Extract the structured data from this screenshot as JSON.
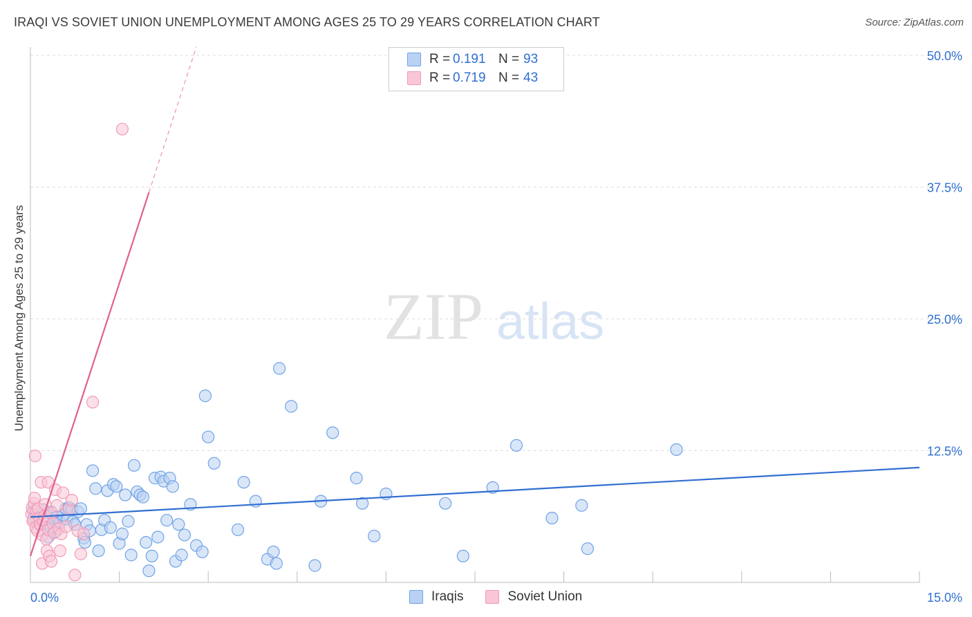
{
  "title": "IRAQI VS SOVIET UNION UNEMPLOYMENT AMONG AGES 25 TO 29 YEARS CORRELATION CHART",
  "source": "Source: ZipAtlas.com",
  "watermark": {
    "zip": "ZIP",
    "atlas": "atlas"
  },
  "legend_top": {
    "rows": [
      {
        "r_label": "R =",
        "r_value": "0.191",
        "n_label": "N =",
        "n_value": "93",
        "color": "#6fa3e6",
        "fill": "#b9d1f3"
      },
      {
        "r_label": "R =",
        "r_value": "0.719",
        "n_label": "N =",
        "n_value": "43",
        "color": "#f09bb8",
        "fill": "#f9c6d6"
      }
    ]
  },
  "legend_bottom": [
    {
      "label": "Iraqis",
      "color": "#6fa3e6",
      "fill": "#b9d1f3"
    },
    {
      "label": "Soviet Union",
      "color": "#f09bb8",
      "fill": "#f9c6d6"
    }
  ],
  "chart_data": {
    "type": "scatter",
    "title": "IRAQI VS SOVIET UNION UNEMPLOYMENT AMONG AGES 25 TO 29 YEARS CORRELATION CHART",
    "xlabel": "",
    "ylabel": "Unemployment Among Ages 25 to 29 years",
    "xlim": [
      0,
      15
    ],
    "ylim": [
      0,
      50
    ],
    "x_tick_labels": [
      {
        "value": 0,
        "label": "0.0%"
      },
      {
        "value": 15,
        "label": "15.0%"
      }
    ],
    "y_tick_labels": [
      {
        "value": 12.5,
        "label": "12.5%"
      },
      {
        "value": 25,
        "label": "25.0%"
      },
      {
        "value": 37.5,
        "label": "37.5%"
      },
      {
        "value": 50,
        "label": "50.0%"
      }
    ],
    "series": [
      {
        "name": "Iraqis",
        "color": "#6fa3e6",
        "fill": "#b9d1f3",
        "line_color": "#2f6fd1",
        "trend": {
          "x0": 0,
          "y0": 6.2,
          "x1": 15,
          "y1": 10.9
        },
        "points": [
          [
            0.05,
            6.8
          ],
          [
            0.08,
            6.2
          ],
          [
            0.1,
            5.9
          ],
          [
            0.12,
            6.5
          ],
          [
            0.15,
            5.5
          ],
          [
            0.18,
            6.1
          ],
          [
            0.2,
            5.8
          ],
          [
            0.22,
            6.9
          ],
          [
            0.25,
            6.0
          ],
          [
            0.28,
            5.6
          ],
          [
            0.3,
            6.3
          ],
          [
            0.32,
            5.2
          ],
          [
            0.35,
            6.7
          ],
          [
            0.38,
            5.9
          ],
          [
            0.4,
            6.1
          ],
          [
            0.42,
            4.8
          ],
          [
            0.45,
            6.2
          ],
          [
            0.5,
            5.7
          ],
          [
            0.55,
            6.4
          ],
          [
            0.6,
            7.0
          ],
          [
            0.62,
            6.0
          ],
          [
            0.65,
            7.1
          ],
          [
            0.7,
            6.9
          ],
          [
            0.72,
            5.8
          ],
          [
            0.75,
            5.5
          ],
          [
            0.8,
            6.7
          ],
          [
            0.85,
            7.0
          ],
          [
            0.9,
            4.2
          ],
          [
            0.92,
            3.8
          ],
          [
            0.95,
            5.5
          ],
          [
            1.0,
            4.9
          ],
          [
            1.05,
            10.6
          ],
          [
            1.1,
            8.9
          ],
          [
            1.15,
            3.0
          ],
          [
            1.2,
            5.0
          ],
          [
            1.25,
            5.9
          ],
          [
            1.3,
            8.7
          ],
          [
            1.35,
            5.2
          ],
          [
            1.4,
            9.3
          ],
          [
            1.45,
            9.1
          ],
          [
            1.5,
            3.7
          ],
          [
            1.55,
            4.6
          ],
          [
            1.6,
            8.3
          ],
          [
            1.65,
            5.8
          ],
          [
            1.7,
            2.6
          ],
          [
            1.75,
            11.1
          ],
          [
            1.8,
            8.6
          ],
          [
            1.85,
            8.3
          ],
          [
            1.9,
            8.1
          ],
          [
            1.95,
            3.8
          ],
          [
            2.0,
            1.1
          ],
          [
            2.05,
            2.5
          ],
          [
            2.1,
            9.9
          ],
          [
            2.15,
            4.3
          ],
          [
            2.2,
            10.0
          ],
          [
            2.25,
            9.6
          ],
          [
            2.3,
            5.9
          ],
          [
            2.35,
            9.9
          ],
          [
            2.4,
            9.1
          ],
          [
            2.45,
            2.0
          ],
          [
            2.5,
            5.5
          ],
          [
            2.55,
            2.6
          ],
          [
            2.6,
            4.5
          ],
          [
            2.7,
            7.4
          ],
          [
            2.8,
            3.5
          ],
          [
            2.9,
            2.9
          ],
          [
            2.95,
            17.7
          ],
          [
            3.0,
            13.8
          ],
          [
            3.1,
            11.3
          ],
          [
            3.5,
            5.0
          ],
          [
            3.6,
            9.5
          ],
          [
            3.8,
            7.7
          ],
          [
            4.0,
            2.2
          ],
          [
            4.1,
            2.9
          ],
          [
            4.2,
            20.3
          ],
          [
            4.15,
            1.8
          ],
          [
            4.4,
            16.7
          ],
          [
            4.8,
            1.6
          ],
          [
            4.9,
            7.7
          ],
          [
            5.1,
            14.2
          ],
          [
            5.5,
            9.9
          ],
          [
            5.6,
            7.5
          ],
          [
            5.8,
            4.4
          ],
          [
            6.0,
            8.4
          ],
          [
            7.0,
            7.5
          ],
          [
            7.3,
            2.5
          ],
          [
            7.8,
            9.0
          ],
          [
            8.2,
            13.0
          ],
          [
            8.8,
            6.1
          ],
          [
            9.3,
            7.3
          ],
          [
            9.4,
            3.2
          ],
          [
            10.9,
            12.6
          ],
          [
            0.3,
            4.3
          ]
        ]
      },
      {
        "name": "Soviet Union",
        "color": "#f09bb8",
        "fill": "#f9c6d6",
        "line_color": "#e0608d",
        "trend": {
          "x0": 0,
          "y0": 2.5,
          "x1": 2.0,
          "y1": 37.0
        },
        "trend_extension": {
          "x0": 2.0,
          "y0": 37.0,
          "x1": 2.8,
          "y1": 50.8
        },
        "points": [
          [
            0.02,
            6.5
          ],
          [
            0.03,
            7.1
          ],
          [
            0.04,
            5.8
          ],
          [
            0.05,
            6.0
          ],
          [
            0.06,
            7.5
          ],
          [
            0.07,
            8.0
          ],
          [
            0.08,
            12.0
          ],
          [
            0.09,
            5.2
          ],
          [
            0.1,
            6.8
          ],
          [
            0.12,
            4.9
          ],
          [
            0.13,
            7.0
          ],
          [
            0.15,
            6.1
          ],
          [
            0.17,
            5.5
          ],
          [
            0.18,
            9.5
          ],
          [
            0.2,
            4.5
          ],
          [
            0.2,
            1.8
          ],
          [
            0.22,
            5.9
          ],
          [
            0.24,
            6.3
          ],
          [
            0.25,
            7.4
          ],
          [
            0.27,
            4.1
          ],
          [
            0.28,
            3.0
          ],
          [
            0.3,
            5.0
          ],
          [
            0.3,
            9.5
          ],
          [
            0.32,
            2.5
          ],
          [
            0.35,
            2.0
          ],
          [
            0.36,
            6.6
          ],
          [
            0.38,
            5.6
          ],
          [
            0.4,
            4.7
          ],
          [
            0.42,
            8.8
          ],
          [
            0.45,
            7.3
          ],
          [
            0.48,
            5.1
          ],
          [
            0.5,
            3.0
          ],
          [
            0.52,
            4.6
          ],
          [
            0.55,
            8.5
          ],
          [
            0.6,
            5.3
          ],
          [
            0.65,
            6.9
          ],
          [
            0.7,
            7.8
          ],
          [
            0.75,
            0.7
          ],
          [
            0.8,
            4.9
          ],
          [
            0.85,
            2.7
          ],
          [
            0.9,
            4.6
          ],
          [
            1.05,
            17.1
          ],
          [
            1.55,
            43.0
          ]
        ]
      }
    ],
    "grid": true,
    "legend": "top-center"
  }
}
